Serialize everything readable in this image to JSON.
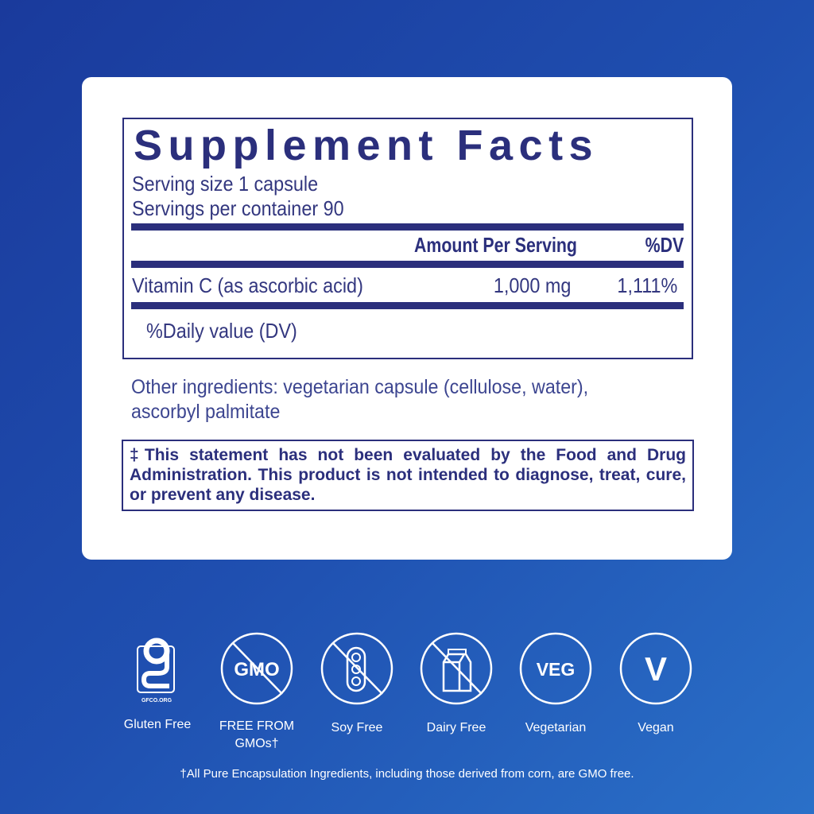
{
  "facts": {
    "title": "Supplement Facts",
    "serving_size": "Serving size  1 capsule",
    "servings_per_container": "Servings per container  90",
    "col_amount": "Amount Per Serving",
    "col_dv": "%DV",
    "rows": [
      {
        "name": "Vitamin C (as ascorbic acid)",
        "amount": "1,000 mg",
        "dv": "1,111%"
      }
    ],
    "footnote": "%Daily value (DV)"
  },
  "other_ingredients": {
    "line1": "Other ingredients: vegetarian capsule (cellulose, water),",
    "line2": "ascorbyl palmitate"
  },
  "disclaimer": "‡This statement has not been evaluated by the Food and Drug Administration. This product is not intended to diagnose, treat, cure, or prevent any disease.",
  "badges": [
    {
      "icon": "gluten-free-icon",
      "label": "Gluten Free",
      "logo_text": "GFCO.ORG"
    },
    {
      "icon": "gmo-free-icon",
      "label": "FREE FROM",
      "label2": "GMOs†",
      "icon_text": "GMO"
    },
    {
      "icon": "soy-free-icon",
      "label": "Soy Free"
    },
    {
      "icon": "dairy-free-icon",
      "label": "Dairy Free"
    },
    {
      "icon": "vegetarian-icon",
      "label": "Vegetarian",
      "icon_text": "VEG"
    },
    {
      "icon": "vegan-icon",
      "label": "Vegan",
      "icon_text": "V"
    }
  ],
  "footer": "†All Pure Encapsulation Ingredients, including those derived from corn, are GMO free.",
  "colors": {
    "navy": "#2b2f7c",
    "background": "#1f4fb0"
  }
}
